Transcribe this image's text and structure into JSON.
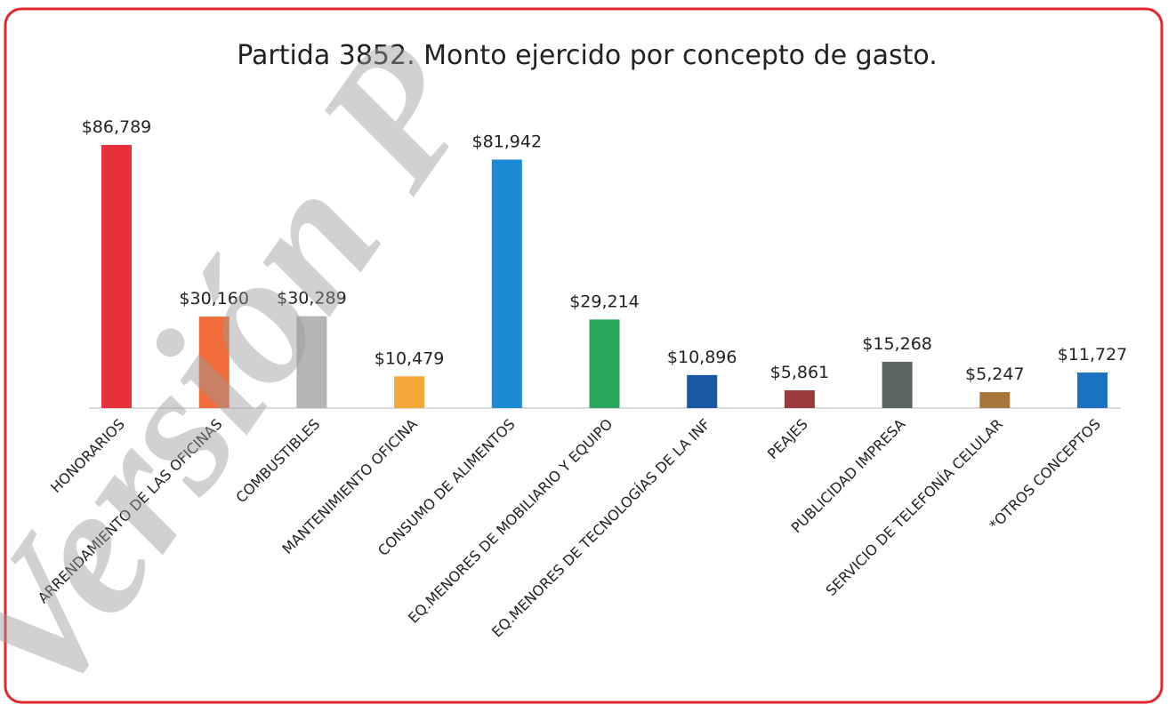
{
  "chart_data": {
    "type": "bar",
    "title": "Partida 3852. Monto ejercido por concepto de gasto.",
    "watermark": "Versión P",
    "categories": [
      "HONORARIOS",
      "ARRENDAMIENTO DE LAS OFICINAS",
      "COMBUSTIBLES",
      "MANTENIMIENTO OFICINA",
      "CONSUMO DE ALIMENTOS",
      "EQ.MENORES DE MOBILIARIO Y EQUIPO",
      "EQ.MENORES DE TECNOLOGÍAS DE LA INF",
      "PEAJES",
      "PUBLICIDAD IMPRESA",
      "SERVICIO DE TELEFONÍA CELULAR",
      "*OTROS CONCEPTOS"
    ],
    "values": [
      86789,
      30160,
      30289,
      10479,
      81942,
      29214,
      10896,
      5861,
      15268,
      5247,
      11727
    ],
    "value_labels": [
      "$86,789",
      "$30,160",
      "$30,289",
      "$10,479",
      "$81,942",
      "$29,214",
      "$10,896",
      "$5,861",
      "$15,268",
      "$5,247",
      "$11,727"
    ],
    "colors": [
      "#e8303a",
      "#f26b3a",
      "#b5b5b5",
      "#f5a93a",
      "#1a8ad4",
      "#27a85a",
      "#1858a0",
      "#9b3a3a",
      "#5c6460",
      "#a8763a",
      "#1a72c0"
    ]
  }
}
